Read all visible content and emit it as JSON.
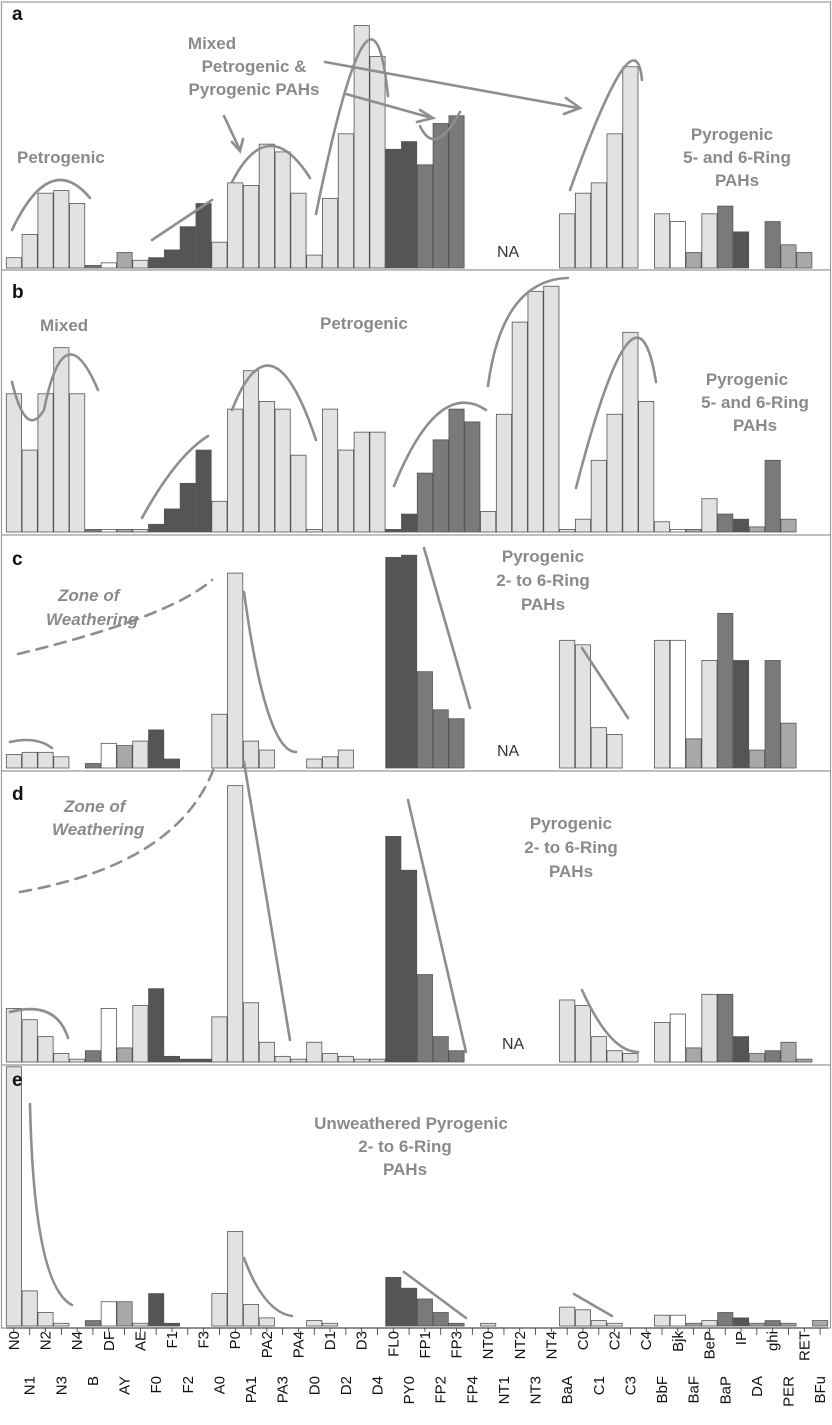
{
  "colors": {
    "light": "#e2e2e2",
    "white": "#ffffff",
    "mid": "#a8a8a8",
    "dark": "#7a7a7a",
    "darker": "#555555",
    "annotation": "#8a8a8a"
  },
  "chart_data": {
    "type": "bar",
    "categories": [
      "N0",
      "N1",
      "N2",
      "N3",
      "N4",
      "B",
      "DF",
      "AY",
      "AE",
      "F0",
      "F1",
      "F2",
      "F3",
      "A0",
      "P0",
      "PA1",
      "PA2",
      "PA3",
      "PA4",
      "D0",
      "D1",
      "D2",
      "D3",
      "D4",
      "FL0",
      "PY0",
      "FP1",
      "FP2",
      "FP3",
      "FP4",
      "NT0",
      "NT1",
      "NT2",
      "NT3",
      "NT4",
      "BaA",
      "C0",
      "C1",
      "C2",
      "C3",
      "C4",
      "BbF",
      "Bjk",
      "BaF",
      "BeP",
      "BaP",
      "IP",
      "DA",
      "ghi",
      "PER",
      "RET",
      "BFu"
    ],
    "category_styles": [
      "light",
      "light",
      "light",
      "light",
      "light",
      "dark",
      "white",
      "mid",
      "light",
      "darker",
      "darker",
      "darker",
      "darker",
      "light",
      "light",
      "light",
      "light",
      "light",
      "light",
      "light",
      "light",
      "light",
      "light",
      "light",
      "darker",
      "darker",
      "dark",
      "dark",
      "dark",
      "dark",
      "light",
      "light",
      "light",
      "light",
      "light",
      "light",
      "light",
      "light",
      "light",
      "light",
      "light",
      "light",
      "white",
      "mid",
      "light",
      "dark",
      "darker",
      "mid",
      "dark",
      "mid",
      "mid",
      "mid"
    ],
    "ylim": [
      0,
      1
    ],
    "panels": [
      {
        "letter": "a",
        "annotations": [
          "Petrogenic",
          "Mixed",
          "Petrogenic &",
          "Pyrogenic PAHs",
          "Pyrogenic",
          "5- and 6-Ring",
          "PAHs"
        ],
        "na_label": "NA",
        "values": [
          0.04,
          0.13,
          0.29,
          0.3,
          0.25,
          0.01,
          0.02,
          0.06,
          0.03,
          0.04,
          0.07,
          0.16,
          0.25,
          0.1,
          0.33,
          0.32,
          0.48,
          0.45,
          0.29,
          0.05,
          0.27,
          0.52,
          0.94,
          0.82,
          0.46,
          0.49,
          0.4,
          0.56,
          0.59,
          0,
          0,
          0,
          0,
          0,
          0,
          0.21,
          0.29,
          0.33,
          0.52,
          0.78,
          0,
          0.21,
          0.18,
          0.06,
          0.21,
          0.24,
          0.14,
          0,
          0.18,
          0.09,
          0.06,
          0
        ]
      },
      {
        "letter": "b",
        "annotations": [
          "Mixed",
          "Petrogenic",
          "Pyrogenic",
          "5- and 6-Ring",
          "PAHs"
        ],
        "na_label": "",
        "values": [
          0.54,
          0.32,
          0.54,
          0.72,
          0.54,
          0.01,
          0.01,
          0.01,
          0.01,
          0.03,
          0.09,
          0.19,
          0.32,
          0.12,
          0.48,
          0.63,
          0.51,
          0.48,
          0.3,
          0.01,
          0.48,
          0.32,
          0.39,
          0.39,
          0.01,
          0.07,
          0.23,
          0.36,
          0.48,
          0.43,
          0.08,
          0.46,
          0.82,
          0.94,
          0.96,
          0.01,
          0.05,
          0.28,
          0.46,
          0.78,
          0.51,
          0.04,
          0.01,
          0.01,
          0.13,
          0.07,
          0.05,
          0.02,
          0.28,
          0.05,
          0,
          0
        ]
      },
      {
        "letter": "c",
        "annotations": [
          "Zone of",
          "Weathering",
          "Pyrogenic",
          "2- to 6-Ring",
          "PAHs"
        ],
        "na_label": "NA",
        "values": [
          0.06,
          0.07,
          0.07,
          0.05,
          0,
          0.02,
          0.11,
          0.1,
          0.12,
          0.17,
          0.04,
          0,
          0,
          0.24,
          0.87,
          0.12,
          0.08,
          0,
          0,
          0.04,
          0.05,
          0.08,
          0,
          0,
          0.94,
          0.95,
          0.43,
          0.26,
          0.22,
          0,
          0,
          0,
          0,
          0,
          0,
          0.57,
          0.55,
          0.18,
          0.15,
          0,
          0,
          0.57,
          0.57,
          0.13,
          0.48,
          0.69,
          0.48,
          0.08,
          0.48,
          0.2,
          0,
          0
        ]
      },
      {
        "letter": "d",
        "annotations": [
          "Zone of",
          "Weathering",
          "Pyrogenic",
          "2- to 6-Ring",
          "PAHs"
        ],
        "na_label": "NA",
        "values": [
          0.19,
          0.15,
          0.09,
          0.03,
          0.01,
          0.04,
          0.19,
          0.05,
          0.2,
          0.26,
          0.02,
          0.01,
          0.01,
          0.16,
          0.98,
          0.21,
          0.07,
          0.02,
          0.01,
          0.07,
          0.03,
          0.02,
          0.01,
          0.01,
          0.8,
          0.68,
          0.31,
          0.09,
          0.04,
          0,
          0,
          0,
          0,
          0,
          0,
          0.22,
          0.2,
          0.09,
          0.04,
          0.03,
          0,
          0.14,
          0.17,
          0.05,
          0.24,
          0.24,
          0.09,
          0.03,
          0.04,
          0.07,
          0.01,
          0
        ]
      },
      {
        "letter": "e",
        "annotations": [
          "Unweathered Pyrogenic",
          "2- to 6-Ring",
          "PAHs"
        ],
        "na_label": "",
        "values": [
          0.96,
          0.13,
          0.05,
          0.01,
          0,
          0.02,
          0.09,
          0.09,
          0.01,
          0.12,
          0.01,
          0,
          0,
          0.12,
          0.35,
          0.08,
          0.03,
          0,
          0,
          0.02,
          0.01,
          0,
          0,
          0,
          0.18,
          0.14,
          0.1,
          0.05,
          0.01,
          0,
          0.01,
          0,
          0,
          0,
          0,
          0.07,
          0.06,
          0.02,
          0.01,
          0,
          0,
          0.04,
          0.04,
          0.01,
          0.02,
          0.05,
          0.03,
          0.01,
          0.02,
          0.01,
          0,
          0.02
        ]
      }
    ]
  }
}
